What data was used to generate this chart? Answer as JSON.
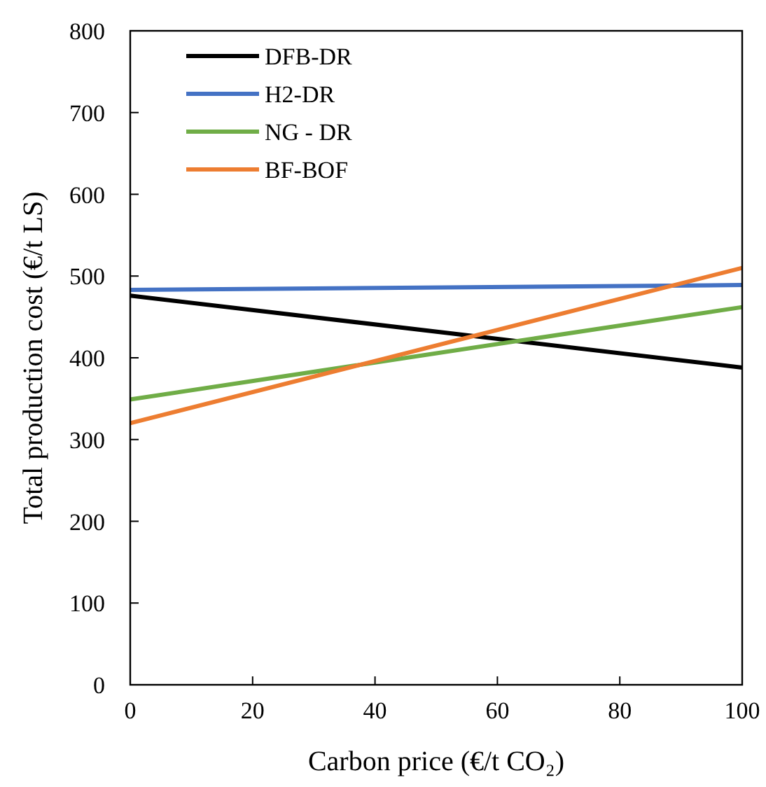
{
  "chart_data": {
    "type": "line",
    "xlabel": "Carbon price (€/t CO₂)",
    "ylabel": "Total production cost (€/t LS)",
    "x": [
      0,
      100
    ],
    "series": [
      {
        "name": "DFB-DR",
        "color": "#000000",
        "values": [
          476,
          388
        ]
      },
      {
        "name": "H2-DR",
        "color": "#4472c4",
        "values": [
          483,
          489
        ]
      },
      {
        "name": "NG - DR",
        "color": "#70ad47",
        "values": [
          349,
          462
        ]
      },
      {
        "name": "BF-BOF",
        "color": "#ed7d31",
        "values": [
          320,
          510
        ]
      }
    ],
    "xlim": [
      0,
      100
    ],
    "xticks": [
      0,
      20,
      40,
      60,
      80,
      100
    ],
    "ylim": [
      0,
      800
    ],
    "yticks": [
      0,
      100,
      200,
      300,
      400,
      500,
      600,
      700,
      800
    ],
    "legend": "top left",
    "grid": false,
    "marker": "none",
    "line_style": "solid"
  }
}
